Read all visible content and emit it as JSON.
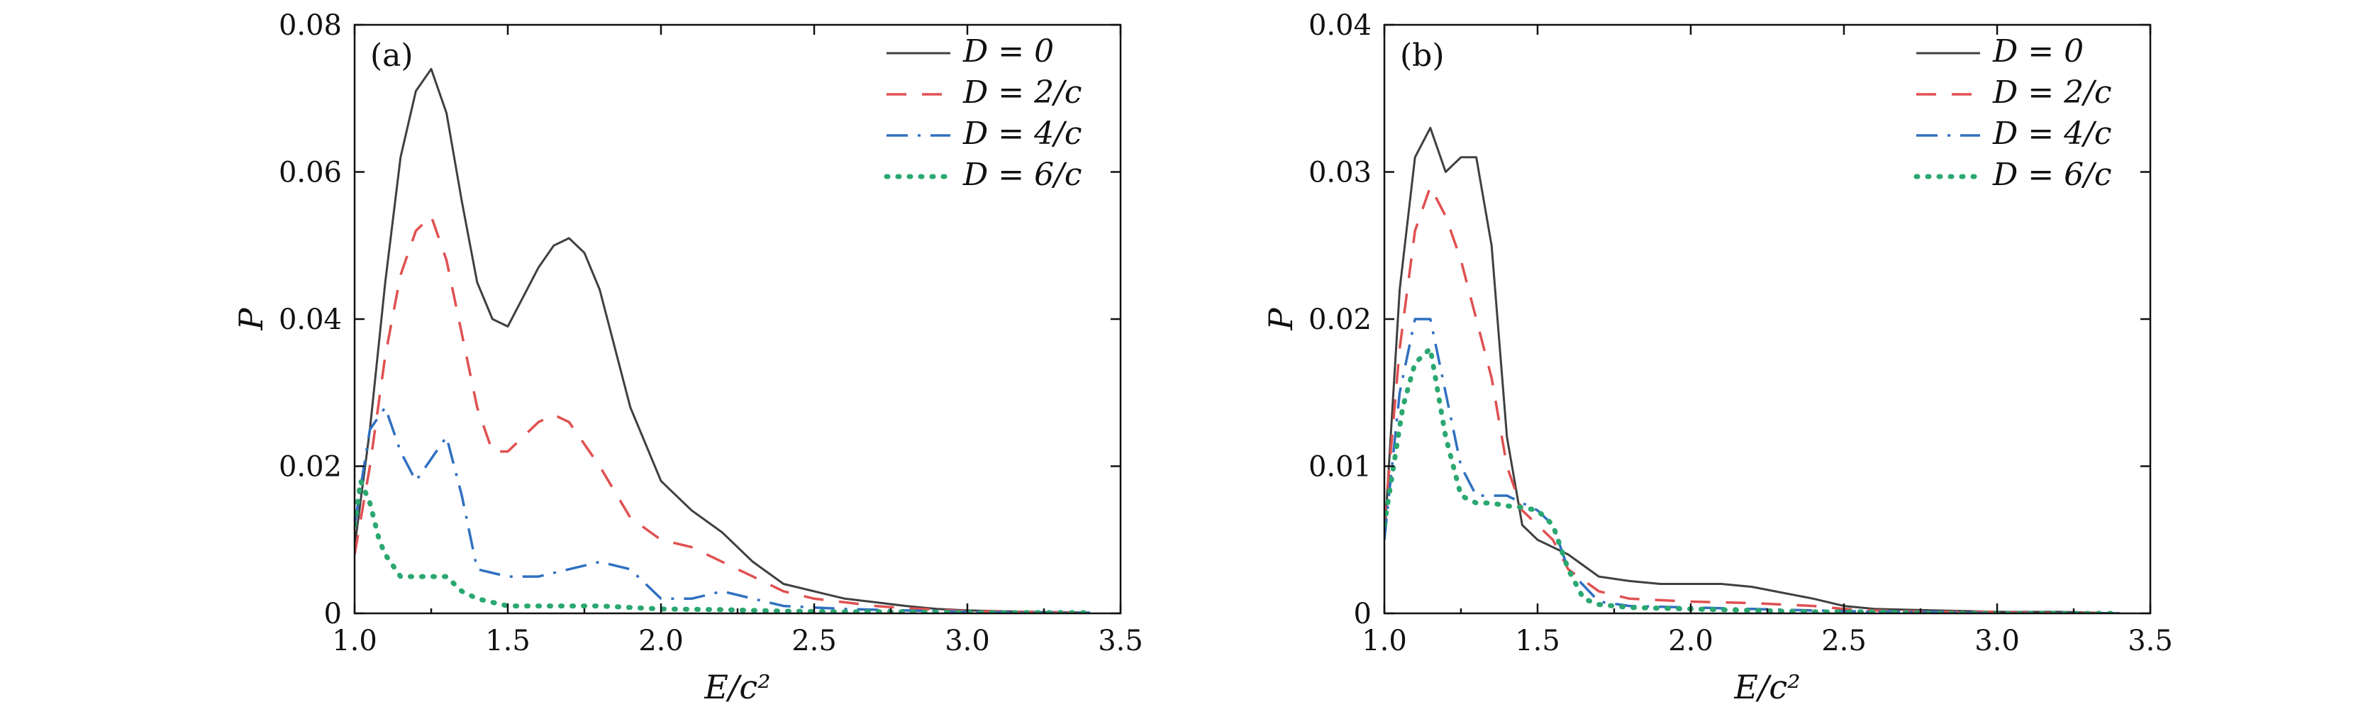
{
  "chart_data": [
    {
      "type": "line",
      "panel_label": "(a)",
      "xlabel": "E/c²",
      "ylabel": "P",
      "xlim": [
        1.0,
        3.5
      ],
      "ylim": [
        0,
        0.08
      ],
      "xticks": [
        1.0,
        1.5,
        2.0,
        2.5,
        3.0,
        3.5
      ],
      "xtick_labels": [
        "1.0",
        "1.5",
        "2.0",
        "2.5",
        "3.0",
        "3.5"
      ],
      "yticks": [
        0,
        0.02,
        0.04,
        0.06,
        0.08
      ],
      "ytick_labels": [
        "0",
        "0.02",
        "0.04",
        "0.06",
        "0.08"
      ],
      "legend_position": "top-right",
      "series": [
        {
          "name": "D = 0",
          "color": "#404040",
          "dash": "solid",
          "x": [
            1.0,
            1.05,
            1.1,
            1.15,
            1.2,
            1.25,
            1.3,
            1.35,
            1.4,
            1.45,
            1.5,
            1.55,
            1.6,
            1.65,
            1.7,
            1.75,
            1.8,
            1.85,
            1.9,
            2.0,
            2.1,
            2.2,
            2.3,
            2.4,
            2.5,
            2.6,
            2.7,
            2.8,
            2.9,
            3.0,
            3.2,
            3.4
          ],
          "values": [
            0.009,
            0.025,
            0.045,
            0.062,
            0.071,
            0.074,
            0.068,
            0.056,
            0.045,
            0.04,
            0.039,
            0.043,
            0.047,
            0.05,
            0.051,
            0.049,
            0.044,
            0.036,
            0.028,
            0.018,
            0.014,
            0.011,
            0.007,
            0.004,
            0.003,
            0.002,
            0.0015,
            0.001,
            0.0006,
            0.0004,
            0.0002,
            0.0001
          ]
        },
        {
          "name": "D = 2/c",
          "color": "#e05050",
          "dash": "dashed",
          "x": [
            1.0,
            1.05,
            1.1,
            1.15,
            1.2,
            1.25,
            1.3,
            1.35,
            1.4,
            1.45,
            1.5,
            1.55,
            1.6,
            1.65,
            1.7,
            1.8,
            1.9,
            2.0,
            2.1,
            2.2,
            2.3,
            2.4,
            2.5,
            2.6,
            2.7,
            2.8,
            2.9,
            3.0,
            3.2,
            3.4
          ],
          "values": [
            0.008,
            0.02,
            0.035,
            0.046,
            0.052,
            0.054,
            0.048,
            0.038,
            0.028,
            0.022,
            0.022,
            0.024,
            0.026,
            0.027,
            0.026,
            0.02,
            0.013,
            0.01,
            0.009,
            0.007,
            0.005,
            0.003,
            0.002,
            0.0015,
            0.001,
            0.0007,
            0.0005,
            0.0003,
            0.0002,
            0.0001
          ]
        },
        {
          "name": "D = 4/c",
          "color": "#3070c0",
          "dash": "dashdot",
          "x": [
            1.0,
            1.05,
            1.1,
            1.15,
            1.2,
            1.25,
            1.3,
            1.35,
            1.4,
            1.5,
            1.6,
            1.7,
            1.8,
            1.9,
            2.0,
            2.1,
            2.2,
            2.3,
            2.4,
            2.5,
            2.6,
            2.8,
            3.0,
            3.2,
            3.4
          ],
          "values": [
            0.012,
            0.025,
            0.028,
            0.022,
            0.018,
            0.021,
            0.024,
            0.016,
            0.006,
            0.005,
            0.005,
            0.006,
            0.007,
            0.006,
            0.002,
            0.002,
            0.003,
            0.002,
            0.001,
            0.0008,
            0.0006,
            0.0004,
            0.0002,
            0.0001,
            0.0001
          ]
        },
        {
          "name": "D = 6/c",
          "color": "#2aa870",
          "dash": "dotted",
          "x": [
            1.0,
            1.02,
            1.05,
            1.08,
            1.1,
            1.15,
            1.2,
            1.25,
            1.3,
            1.35,
            1.4,
            1.5,
            1.6,
            1.7,
            1.8,
            1.9,
            2.0,
            2.2,
            2.4,
            2.6,
            2.8,
            3.0,
            3.2,
            3.4
          ],
          "values": [
            0.012,
            0.018,
            0.015,
            0.01,
            0.008,
            0.005,
            0.005,
            0.005,
            0.005,
            0.003,
            0.002,
            0.001,
            0.001,
            0.001,
            0.001,
            0.0008,
            0.0006,
            0.0005,
            0.0003,
            0.0002,
            0.0002,
            0.0001,
            0.0001,
            0.0001
          ]
        }
      ]
    },
    {
      "type": "line",
      "panel_label": "(b)",
      "xlabel": "E/c²",
      "ylabel": "P",
      "xlim": [
        1.0,
        3.5
      ],
      "ylim": [
        0,
        0.04
      ],
      "xticks": [
        1.0,
        1.5,
        2.0,
        2.5,
        3.0,
        3.5
      ],
      "xtick_labels": [
        "1.0",
        "1.5",
        "2.0",
        "2.5",
        "3.0",
        "3.5"
      ],
      "yticks": [
        0,
        0.01,
        0.02,
        0.03,
        0.04
      ],
      "ytick_labels": [
        "0",
        "0.01",
        "0.02",
        "0.03",
        "0.04"
      ],
      "legend_position": "top-right",
      "series": [
        {
          "name": "D = 0",
          "color": "#404040",
          "dash": "solid",
          "x": [
            1.0,
            1.05,
            1.1,
            1.15,
            1.2,
            1.25,
            1.3,
            1.35,
            1.4,
            1.45,
            1.5,
            1.55,
            1.6,
            1.7,
            1.8,
            1.9,
            2.0,
            2.1,
            2.2,
            2.3,
            2.4,
            2.5,
            2.6,
            2.8,
            3.0,
            3.2,
            3.4
          ],
          "values": [
            0.005,
            0.022,
            0.031,
            0.033,
            0.03,
            0.031,
            0.031,
            0.025,
            0.012,
            0.006,
            0.005,
            0.0045,
            0.004,
            0.0025,
            0.0022,
            0.002,
            0.002,
            0.002,
            0.0018,
            0.0014,
            0.001,
            0.0005,
            0.0003,
            0.0002,
            0.0001,
            0.0001,
            0.0
          ]
        },
        {
          "name": "D = 2/c",
          "color": "#e05050",
          "dash": "dashed",
          "x": [
            1.0,
            1.05,
            1.1,
            1.15,
            1.2,
            1.25,
            1.3,
            1.35,
            1.4,
            1.45,
            1.5,
            1.55,
            1.6,
            1.7,
            1.8,
            2.0,
            2.2,
            2.4,
            2.5,
            2.6,
            2.8,
            3.0,
            3.2,
            3.4
          ],
          "values": [
            0.006,
            0.018,
            0.026,
            0.029,
            0.027,
            0.024,
            0.02,
            0.016,
            0.01,
            0.007,
            0.006,
            0.005,
            0.003,
            0.0015,
            0.001,
            0.0008,
            0.0007,
            0.0005,
            0.0003,
            0.0002,
            0.0001,
            0.0001,
            0.0,
            0.0
          ]
        },
        {
          "name": "D = 4/c",
          "color": "#3070c0",
          "dash": "dashdot",
          "x": [
            1.0,
            1.05,
            1.1,
            1.15,
            1.2,
            1.25,
            1.3,
            1.35,
            1.4,
            1.45,
            1.5,
            1.55,
            1.6,
            1.7,
            1.8,
            2.0,
            2.2,
            2.4,
            2.6,
            2.8,
            3.0,
            3.2,
            3.4
          ],
          "values": [
            0.005,
            0.015,
            0.02,
            0.02,
            0.015,
            0.01,
            0.008,
            0.008,
            0.008,
            0.0075,
            0.007,
            0.006,
            0.003,
            0.0008,
            0.0005,
            0.0004,
            0.0003,
            0.0002,
            0.0001,
            0.0001,
            0.0,
            0.0,
            0.0
          ]
        },
        {
          "name": "D = 6/c",
          "color": "#2aa870",
          "dash": "dotted",
          "x": [
            1.0,
            1.03,
            1.06,
            1.1,
            1.15,
            1.2,
            1.25,
            1.3,
            1.35,
            1.4,
            1.45,
            1.5,
            1.55,
            1.6,
            1.65,
            1.7,
            1.8,
            2.0,
            2.2,
            2.4,
            2.6,
            2.8,
            3.0,
            3.2,
            3.4
          ],
          "values": [
            0.006,
            0.01,
            0.014,
            0.017,
            0.018,
            0.012,
            0.008,
            0.0075,
            0.0075,
            0.0073,
            0.0072,
            0.007,
            0.006,
            0.003,
            0.001,
            0.0006,
            0.0004,
            0.0003,
            0.0002,
            0.0001,
            0.0001,
            0.0,
            0.0,
            0.0,
            0.0
          ]
        }
      ]
    }
  ]
}
